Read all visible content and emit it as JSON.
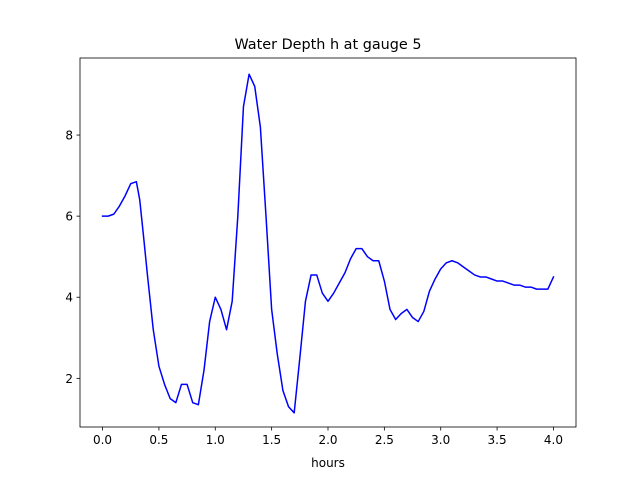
{
  "chart_data": {
    "type": "line",
    "title": "Water Depth h at gauge 5",
    "xlabel": "hours",
    "ylabel": "",
    "xlim": [
      -0.2,
      4.2
    ],
    "ylim": [
      0.8,
      9.9
    ],
    "xticks": [
      0.0,
      0.5,
      1.0,
      1.5,
      2.0,
      2.5,
      3.0,
      3.5,
      4.0
    ],
    "xtick_labels": [
      "0.0",
      "0.5",
      "1.0",
      "1.5",
      "2.0",
      "2.5",
      "3.0",
      "3.5",
      "4.0"
    ],
    "yticks": [
      2,
      4,
      6,
      8
    ],
    "ytick_labels": [
      "2",
      "4",
      "6",
      "8"
    ],
    "grid": false,
    "series": [
      {
        "color": "#0000ff",
        "x": [
          0.0,
          0.05,
          0.1,
          0.15,
          0.2,
          0.25,
          0.3,
          0.33,
          0.36,
          0.4,
          0.45,
          0.5,
          0.55,
          0.6,
          0.65,
          0.7,
          0.75,
          0.8,
          0.85,
          0.9,
          0.95,
          1.0,
          1.05,
          1.1,
          1.15,
          1.2,
          1.25,
          1.3,
          1.35,
          1.4,
          1.45,
          1.5,
          1.55,
          1.6,
          1.65,
          1.7,
          1.75,
          1.8,
          1.85,
          1.9,
          1.95,
          2.0,
          2.05,
          2.1,
          2.15,
          2.2,
          2.25,
          2.3,
          2.35,
          2.4,
          2.45,
          2.5,
          2.55,
          2.6,
          2.65,
          2.7,
          2.75,
          2.8,
          2.85,
          2.9,
          2.95,
          3.0,
          3.05,
          3.1,
          3.15,
          3.2,
          3.25,
          3.3,
          3.35,
          3.4,
          3.45,
          3.5,
          3.55,
          3.6,
          3.65,
          3.7,
          3.75,
          3.8,
          3.85,
          3.9,
          3.95,
          4.0
        ],
        "y": [
          6.0,
          6.0,
          6.05,
          6.25,
          6.5,
          6.8,
          6.85,
          6.4,
          5.6,
          4.5,
          3.2,
          2.3,
          1.85,
          1.5,
          1.4,
          1.85,
          1.85,
          1.4,
          1.35,
          2.2,
          3.4,
          4.0,
          3.7,
          3.2,
          3.9,
          6.0,
          8.7,
          9.5,
          9.2,
          8.2,
          6.0,
          3.7,
          2.6,
          1.7,
          1.3,
          1.15,
          2.5,
          3.9,
          4.55,
          4.55,
          4.1,
          3.9,
          4.1,
          4.35,
          4.6,
          4.95,
          5.2,
          5.2,
          5.0,
          4.9,
          4.9,
          4.4,
          3.7,
          3.45,
          3.6,
          3.7,
          3.5,
          3.4,
          3.65,
          4.15,
          4.45,
          4.7,
          4.85,
          4.9,
          4.85,
          4.75,
          4.65,
          4.55,
          4.5,
          4.5,
          4.45,
          4.4,
          4.4,
          4.35,
          4.3,
          4.3,
          4.25,
          4.25,
          4.2,
          4.2,
          4.2,
          4.5
        ]
      }
    ]
  }
}
